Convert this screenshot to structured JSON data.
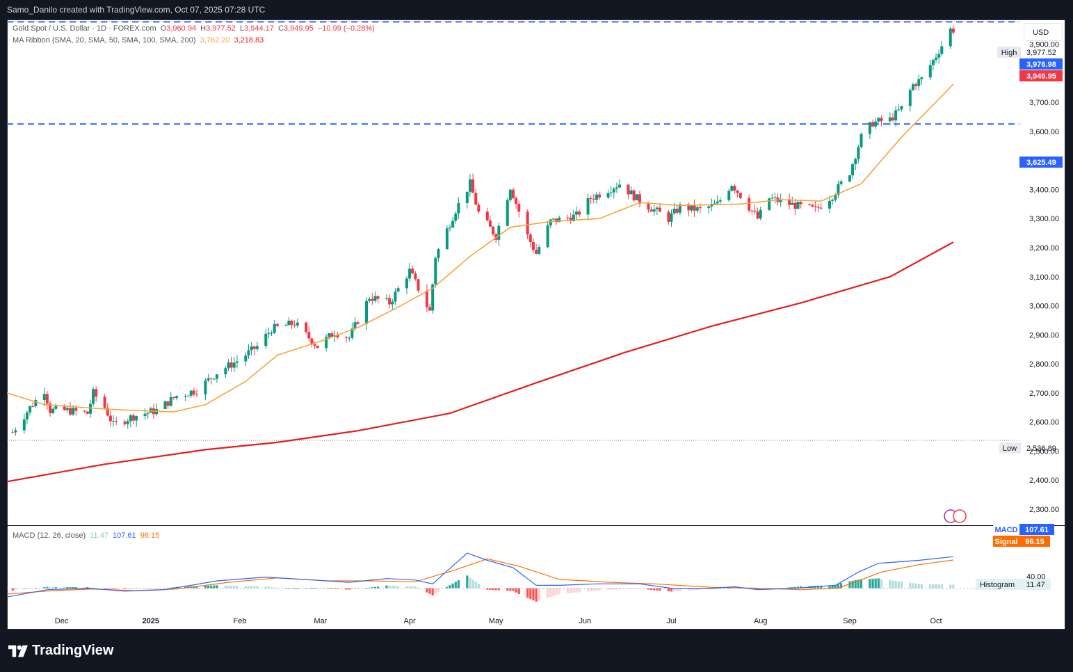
{
  "header": {
    "attribution": "Samo_Danilo created with TradingView.com, Oct 07, 2025 07:28 UTC"
  },
  "legend": {
    "symbol": "Gold Spot / U.S. Dollar · 1D · FOREX.com",
    "open_label": "O",
    "open": "3,960.94",
    "high_label": "H",
    "high": "3,977.52",
    "low_label": "L",
    "low": "3,944.17",
    "close_label": "C",
    "close": "3,949.95",
    "change": "−10.99 (−0.28%)",
    "ma_label": "MA Ribbon (SMA, 20, SMA, 50, SMA, 100, SMA, 200)",
    "ma1_value": "3,762.20",
    "ma2_value": "3,218.83"
  },
  "currency": "USD",
  "macd_legend": {
    "label": "MACD (12, 26, close)",
    "hist": "11.47",
    "macd": "107.61",
    "signal": "96.15"
  },
  "price_tags": {
    "high_label": "High",
    "high_value": "3,977.52",
    "low_label": "Low",
    "low_value": "2,536.89",
    "line1": "3,976.98",
    "line2": "3,625.49",
    "last": "3,949.95",
    "macd_label": "MACD",
    "macd_value": "107.61",
    "signal_label": "Signal",
    "signal_value": "96.15",
    "hist_label": "Histogram",
    "hist_value": "11.47"
  },
  "brand": "TradingView",
  "colors": {
    "up": "#089981",
    "down": "#f23645",
    "ma20": "#f7a23b",
    "ma200": "#e11d1d",
    "hline": "#2962ff",
    "macd": "#2962ff",
    "signal": "#ff6d00",
    "hist_up": "#26a69a",
    "hist_up_light": "#b2dfdb",
    "hist_down": "#ff5252",
    "hist_down_light": "#ffcdd2"
  },
  "chart_data": {
    "type": "candlestick",
    "title": "Gold Spot / U.S. Dollar · 1D · FOREX.com",
    "y_ticks": [
      2300,
      2400,
      2500,
      2600,
      2700,
      2800,
      2900,
      3000,
      3100,
      3200,
      3300,
      3400,
      3500,
      3600,
      3700,
      3800,
      3900
    ],
    "y_tick_labels": [
      "2,300.00",
      "2,400.00",
      "2,500.00",
      "2,600.00",
      "2,700.00",
      "2,800.00",
      "2,900.00",
      "3,000.00",
      "3,100.00",
      "3,200.00",
      "3,300.00",
      "3,400.00",
      "3,500.00",
      "3,600.00",
      "3,700.00",
      "3,800.00",
      "3,900.00"
    ],
    "x_ticks": [
      {
        "label": "Dec",
        "date": "2024-12-01"
      },
      {
        "label": "2025",
        "date": "2025-01-01"
      },
      {
        "label": "Feb",
        "date": "2025-02-01"
      },
      {
        "label": "Mar",
        "date": "2025-03-01"
      },
      {
        "label": "Apr",
        "date": "2025-04-01"
      },
      {
        "label": "May",
        "date": "2025-05-01"
      },
      {
        "label": "Jun",
        "date": "2025-06-01"
      },
      {
        "label": "Jul",
        "date": "2025-07-01"
      },
      {
        "label": "Aug",
        "date": "2025-08-01"
      },
      {
        "label": "Sep",
        "date": "2025-09-01"
      },
      {
        "label": "Oct",
        "date": "2025-10-01"
      }
    ],
    "ylim": [
      2245,
      3985
    ],
    "date_range": [
      "2024-11-12",
      "2025-10-30"
    ],
    "horizontal_lines": [
      3976.98,
      3625.49
    ],
    "high": 3977.52,
    "low": 2536.89,
    "close_points": [
      [
        "2024-11-14",
        2565
      ],
      [
        "2024-11-20",
        2650
      ],
      [
        "2024-11-25",
        2710
      ],
      [
        "2024-11-27",
        2640
      ],
      [
        "2024-12-03",
        2640
      ],
      [
        "2024-12-10",
        2630
      ],
      [
        "2024-12-12",
        2700
      ],
      [
        "2024-12-16",
        2650
      ],
      [
        "2024-12-19",
        2590
      ],
      [
        "2024-12-26",
        2620
      ],
      [
        "2025-01-03",
        2640
      ],
      [
        "2025-01-10",
        2690
      ],
      [
        "2025-01-17",
        2710
      ],
      [
        "2025-01-24",
        2770
      ],
      [
        "2025-01-31",
        2810
      ],
      [
        "2025-02-07",
        2860
      ],
      [
        "2025-02-12",
        2920
      ],
      [
        "2025-02-20",
        2940
      ],
      [
        "2025-02-28",
        2860
      ],
      [
        "2025-03-06",
        2910
      ],
      [
        "2025-03-11",
        2890
      ],
      [
        "2025-03-18",
        3030
      ],
      [
        "2025-03-25",
        3010
      ],
      [
        "2025-04-01",
        3120
      ],
      [
        "2025-04-08",
        2980
      ],
      [
        "2025-04-10",
        3170
      ],
      [
        "2025-04-17",
        3330
      ],
      [
        "2025-04-22",
        3420
      ],
      [
        "2025-04-25",
        3320
      ],
      [
        "2025-05-01",
        3240
      ],
      [
        "2025-05-06",
        3410
      ],
      [
        "2025-05-12",
        3240
      ],
      [
        "2025-05-15",
        3180
      ],
      [
        "2025-05-20",
        3290
      ],
      [
        "2025-05-29",
        3310
      ],
      [
        "2025-06-03",
        3370
      ],
      [
        "2025-06-13",
        3420
      ],
      [
        "2025-06-20",
        3360
      ],
      [
        "2025-06-30",
        3300
      ],
      [
        "2025-07-04",
        3340
      ],
      [
        "2025-07-11",
        3330
      ],
      [
        "2025-07-17",
        3350
      ],
      [
        "2025-07-22",
        3420
      ],
      [
        "2025-07-31",
        3300
      ],
      [
        "2025-08-04",
        3370
      ],
      [
        "2025-08-11",
        3350
      ],
      [
        "2025-08-20",
        3330
      ],
      [
        "2025-08-26",
        3380
      ],
      [
        "2025-09-01",
        3460
      ],
      [
        "2025-09-05",
        3580
      ],
      [
        "2025-09-09",
        3630
      ],
      [
        "2025-09-15",
        3640
      ],
      [
        "2025-09-19",
        3680
      ],
      [
        "2025-09-23",
        3760
      ],
      [
        "2025-09-26",
        3780
      ],
      [
        "2025-10-01",
        3860
      ],
      [
        "2025-10-06",
        3950
      ],
      [
        "2025-10-07",
        3950
      ]
    ],
    "ma20_points": [
      [
        "2024-11-12",
        2700
      ],
      [
        "2024-11-25",
        2660
      ],
      [
        "2024-12-16",
        2645
      ],
      [
        "2024-12-26",
        2640
      ],
      [
        "2025-01-09",
        2635
      ],
      [
        "2025-01-20",
        2660
      ],
      [
        "2025-02-03",
        2740
      ],
      [
        "2025-02-14",
        2830
      ],
      [
        "2025-03-03",
        2885
      ],
      [
        "2025-03-14",
        2925
      ],
      [
        "2025-03-27",
        2990
      ],
      [
        "2025-04-09",
        3060
      ],
      [
        "2025-04-22",
        3170
      ],
      [
        "2025-05-06",
        3270
      ],
      [
        "2025-05-20",
        3290
      ],
      [
        "2025-06-06",
        3300
      ],
      [
        "2025-06-20",
        3355
      ],
      [
        "2025-07-04",
        3345
      ],
      [
        "2025-07-25",
        3350
      ],
      [
        "2025-08-08",
        3365
      ],
      [
        "2025-08-22",
        3360
      ],
      [
        "2025-09-05",
        3420
      ],
      [
        "2025-09-19",
        3580
      ],
      [
        "2025-10-07",
        3762.2
      ]
    ],
    "ma200_points": [
      [
        "2024-11-12",
        2395
      ],
      [
        "2024-12-16",
        2455
      ],
      [
        "2025-01-20",
        2505
      ],
      [
        "2025-02-14",
        2530
      ],
      [
        "2025-03-14",
        2570
      ],
      [
        "2025-04-15",
        2630
      ],
      [
        "2025-05-15",
        2735
      ],
      [
        "2025-06-15",
        2840
      ],
      [
        "2025-07-15",
        2930
      ],
      [
        "2025-08-15",
        3010
      ],
      [
        "2025-09-15",
        3100
      ],
      [
        "2025-10-07",
        3218.83
      ]
    ],
    "macd_ylim": [
      -65,
      210
    ],
    "macd_reference": 40,
    "macd_points": [
      [
        "2024-11-12",
        -30
      ],
      [
        "2024-11-26",
        -5
      ],
      [
        "2024-12-10",
        0
      ],
      [
        "2024-12-23",
        -10
      ],
      [
        "2025-01-06",
        -5
      ],
      [
        "2025-01-24",
        25
      ],
      [
        "2025-02-10",
        38
      ],
      [
        "2025-02-27",
        28
      ],
      [
        "2025-03-11",
        20
      ],
      [
        "2025-03-24",
        33
      ],
      [
        "2025-04-03",
        28
      ],
      [
        "2025-04-09",
        15
      ],
      [
        "2025-04-21",
        120
      ],
      [
        "2025-04-28",
        95
      ],
      [
        "2025-05-07",
        70
      ],
      [
        "2025-05-15",
        10
      ],
      [
        "2025-05-23",
        10
      ],
      [
        "2025-06-05",
        15
      ],
      [
        "2025-06-20",
        15
      ],
      [
        "2025-07-01",
        0
      ],
      [
        "2025-07-15",
        0
      ],
      [
        "2025-07-23",
        5
      ],
      [
        "2025-07-31",
        -5
      ],
      [
        "2025-08-13",
        0
      ],
      [
        "2025-08-27",
        10
      ],
      [
        "2025-09-04",
        55
      ],
      [
        "2025-09-11",
        85
      ],
      [
        "2025-09-25",
        95
      ],
      [
        "2025-10-07",
        107.61
      ]
    ],
    "signal_points": [
      [
        "2024-11-12",
        -20
      ],
      [
        "2024-11-28",
        -8
      ],
      [
        "2024-12-12",
        -3
      ],
      [
        "2024-12-26",
        -8
      ],
      [
        "2025-01-10",
        -3
      ],
      [
        "2025-01-28",
        20
      ],
      [
        "2025-02-14",
        35
      ],
      [
        "2025-03-03",
        25
      ],
      [
        "2025-03-18",
        25
      ],
      [
        "2025-04-03",
        22
      ],
      [
        "2025-04-16",
        60
      ],
      [
        "2025-04-28",
        100
      ],
      [
        "2025-05-09",
        75
      ],
      [
        "2025-05-23",
        30
      ],
      [
        "2025-06-10",
        20
      ],
      [
        "2025-06-25",
        15
      ],
      [
        "2025-07-15",
        3
      ],
      [
        "2025-08-01",
        0
      ],
      [
        "2025-08-15",
        -5
      ],
      [
        "2025-08-28",
        0
      ],
      [
        "2025-09-12",
        55
      ],
      [
        "2025-09-25",
        80
      ],
      [
        "2025-10-07",
        96.15
      ]
    ]
  }
}
